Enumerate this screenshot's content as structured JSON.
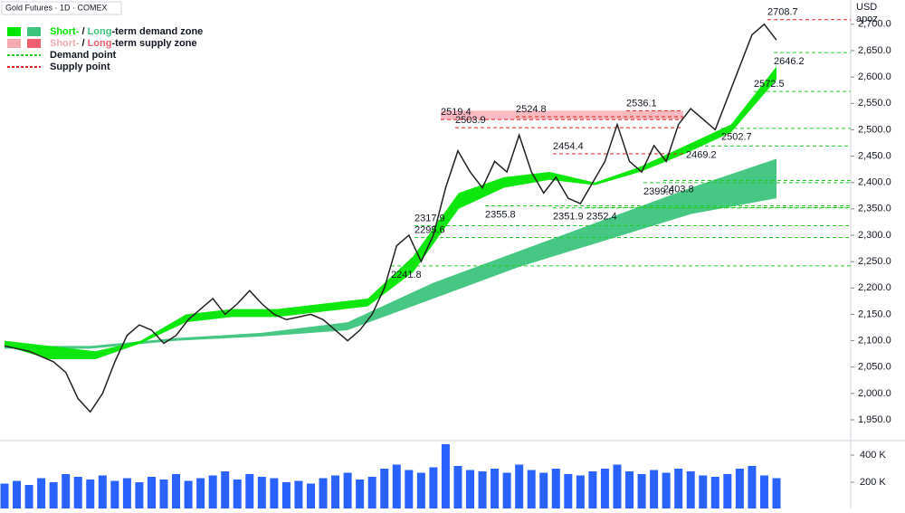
{
  "chart_data": [
    {
      "type": "line",
      "title": "Gold Futures · 1D · COMEX",
      "currency": "USD",
      "indicator": "apoz",
      "legend": {
        "demand": [
          "Short-",
          " / ",
          "Long",
          "-term demand zone"
        ],
        "supply": [
          "Short-",
          " / ",
          "Long",
          "-term supply zone"
        ],
        "demand_point": "Demand point",
        "supply_point": "Supply point"
      },
      "ylim": [
        1914,
        2746
      ],
      "yticks": [
        {
          "value": 1950,
          "label": "1,950.0"
        },
        {
          "value": 2000,
          "label": "2,000.0"
        },
        {
          "value": 2050,
          "label": "2,050.0"
        },
        {
          "value": 2100,
          "label": "2,100.0"
        },
        {
          "value": 2150,
          "label": "2,150.0"
        },
        {
          "value": 2200,
          "label": "2,200.0"
        },
        {
          "value": 2250,
          "label": "2,250.0"
        },
        {
          "value": 2300,
          "label": "2,300.0"
        },
        {
          "value": 2350,
          "label": "2,350.0"
        },
        {
          "value": 2400,
          "label": "2,400.0"
        },
        {
          "value": 2450,
          "label": "2,450.0"
        },
        {
          "value": 2500,
          "label": "2,500.0"
        },
        {
          "value": 2550,
          "label": "2,550.0"
        },
        {
          "value": 2600,
          "label": "2,600.0"
        },
        {
          "value": 2650,
          "label": "2,650.0"
        },
        {
          "value": 2700,
          "label": "2,700.0"
        }
      ],
      "series": [
        {
          "name": "Close",
          "color": "#222222",
          "values": [
            2090,
            2085,
            2080,
            2070,
            2060,
            2040,
            1990,
            1965,
            2000,
            2060,
            2110,
            2130,
            2120,
            2095,
            2110,
            2140,
            2160,
            2180,
            2150,
            2170,
            2195,
            2170,
            2150,
            2140,
            2145,
            2150,
            2140,
            2120,
            2100,
            2120,
            2150,
            2200,
            2280,
            2300,
            2250,
            2300,
            2390,
            2460,
            2420,
            2390,
            2440,
            2420,
            2490,
            2420,
            2380,
            2410,
            2370,
            2360,
            2400,
            2440,
            2510,
            2440,
            2420,
            2470,
            2440,
            2510,
            2540,
            2520,
            2500,
            2560,
            2620,
            2680,
            2700,
            2670
          ]
        }
      ],
      "short_term_zone": {
        "color": "#00e600",
        "upper": [
          2100,
          2090,
          2080,
          2100,
          2150,
          2160,
          2160,
          2170,
          2180,
          2260,
          2380,
          2410,
          2420,
          2400,
          2430,
          2470,
          2510,
          2620
        ],
        "lower": [
          2090,
          2065,
          2065,
          2095,
          2135,
          2145,
          2145,
          2155,
          2165,
          2230,
          2350,
          2390,
          2405,
          2395,
          2420,
          2455,
          2495,
          2595
        ]
      },
      "long_term_zone": {
        "color": "#3cc47c",
        "upper": [
          2090,
          2090,
          2105,
          2115,
          2135,
          2210,
          2270,
          2330,
          2390,
          2445
        ],
        "lower": [
          2085,
          2085,
          2100,
          2108,
          2120,
          2180,
          2240,
          2290,
          2340,
          2370
        ]
      },
      "supply_zone_color": "#f7a8b0",
      "demand_color": "#22cc22",
      "supply_color": "#dd2222",
      "demand_points": [
        2241.8,
        2295.6,
        2317.9,
        2355.8,
        2351.9,
        2352.4,
        2399.6,
        2403.8,
        2469.2,
        2502.7,
        2572.5,
        2646.2
      ],
      "supply_points": [
        2708.7,
        2536.1,
        2524.8,
        2519.4,
        2503.9,
        2454.4
      ]
    },
    {
      "type": "bar",
      "color": "#2962ff",
      "ylim": [
        0,
        500000
      ],
      "yticks": [
        {
          "value": 200000,
          "label": "200 K"
        },
        {
          "value": 400000,
          "label": "400 K"
        }
      ],
      "values": [
        190000,
        210000,
        180000,
        230000,
        200000,
        260000,
        240000,
        220000,
        250000,
        210000,
        230000,
        200000,
        240000,
        220000,
        260000,
        210000,
        230000,
        250000,
        280000,
        220000,
        260000,
        240000,
        230000,
        200000,
        210000,
        190000,
        230000,
        250000,
        270000,
        220000,
        240000,
        300000,
        330000,
        290000,
        270000,
        310000,
        480000,
        320000,
        290000,
        280000,
        300000,
        270000,
        330000,
        290000,
        270000,
        300000,
        260000,
        250000,
        280000,
        300000,
        330000,
        280000,
        260000,
        290000,
        270000,
        300000,
        280000,
        250000,
        240000,
        260000,
        300000,
        320000,
        250000,
        230000
      ]
    }
  ]
}
